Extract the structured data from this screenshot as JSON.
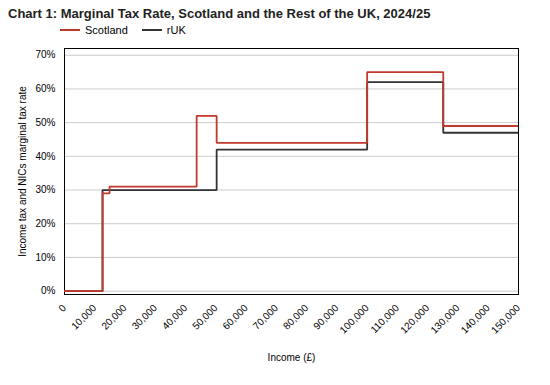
{
  "chart_data": {
    "type": "line",
    "title": "Chart 1: Marginal Tax Rate, Scotland and the Rest of the UK, 2024/25",
    "xlabel": "Income (£)",
    "ylabel": "Income tax and NICs marginal tax rate",
    "xlim": [
      0,
      150000
    ],
    "ylim": [
      -0.01,
      0.72
    ],
    "xticks": [
      0,
      {
        "value": 10000,
        "label": "10,000"
      },
      {
        "value": 20000,
        "label": "20,000"
      },
      {
        "value": 30000,
        "label": "30,000"
      },
      {
        "value": 40000,
        "label": "40,000"
      },
      {
        "value": 50000,
        "label": "50,000"
      },
      {
        "value": 60000,
        "label": "60,000"
      },
      {
        "value": 70000,
        "label": "70,000"
      },
      {
        "value": 80000,
        "label": "80,000"
      },
      {
        "value": 90000,
        "label": "90,000"
      },
      {
        "value": 100000,
        "label": "100,000"
      },
      {
        "value": 110000,
        "label": "110,000"
      },
      {
        "value": 120000,
        "label": "120,000"
      },
      {
        "value": 130000,
        "label": "130,000"
      },
      {
        "value": 140000,
        "label": "140,000"
      },
      {
        "value": 150000,
        "label": "150,000"
      }
    ],
    "yticks": [
      {
        "value": 0,
        "label": "0%"
      },
      {
        "value": 0.1,
        "label": "10%"
      },
      {
        "value": 0.2,
        "label": "20%"
      },
      {
        "value": 0.3,
        "label": "30%"
      },
      {
        "value": 0.4,
        "label": "40%"
      },
      {
        "value": 0.5,
        "label": "50%"
      },
      {
        "value": 0.6,
        "label": "60%"
      },
      {
        "value": 0.7,
        "label": "70%"
      }
    ],
    "grid": "y",
    "legend": "top",
    "series": [
      {
        "name": "rUK",
        "color": "#333333",
        "x": [
          0,
          12570,
          12570,
          50270,
          50270,
          100000,
          100000,
          125140,
          125140,
          150000
        ],
        "values": [
          0,
          0,
          0.3,
          0.3,
          0.42,
          0.42,
          0.62,
          0.62,
          0.47,
          0.47
        ]
      },
      {
        "name": "Scotland",
        "color": "#c0392b",
        "x": [
          0,
          12570,
          12570,
          14876,
          14876,
          26561,
          26561,
          43662,
          43662,
          50270,
          50270,
          57600,
          57600,
          100000,
          100000,
          125140,
          125140,
          150000
        ],
        "values": [
          0,
          0,
          0.29,
          0.29,
          0.31,
          0.31,
          0.31,
          0.31,
          0.52,
          0.52,
          0.44,
          0.44,
          0.44,
          0.44,
          0.65,
          0.65,
          0.49,
          0.49
        ]
      }
    ]
  }
}
